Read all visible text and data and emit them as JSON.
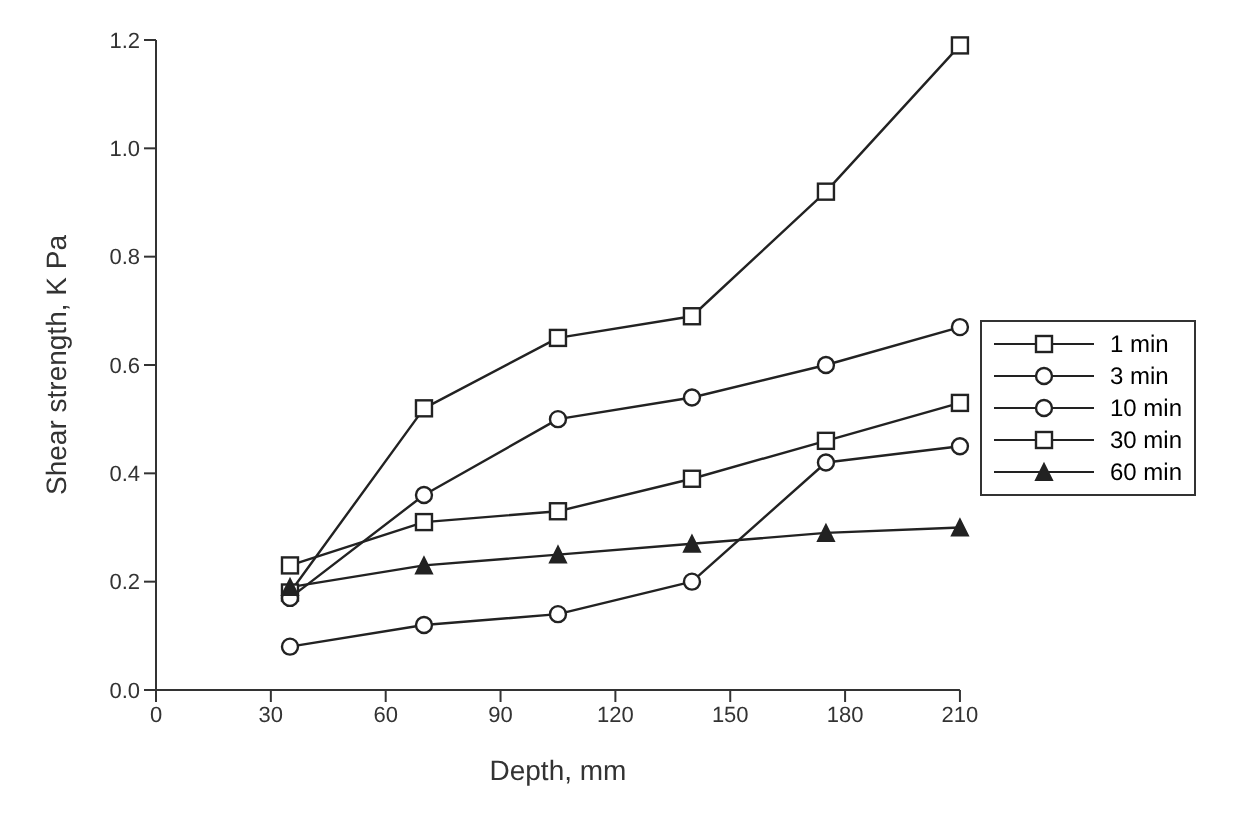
{
  "chart_data": {
    "type": "line",
    "xlabel": "Depth, mm",
    "ylabel": "Shear strength, K Pa",
    "x": [
      35,
      70,
      105,
      140,
      175,
      210
    ],
    "series": [
      {
        "name": "1 min",
        "color": "#222222",
        "marker": "square",
        "values": [
          0.18,
          0.52,
          0.65,
          0.69,
          0.92,
          1.19
        ]
      },
      {
        "name": "3 min",
        "color": "#222222",
        "marker": "circle",
        "values": [
          0.17,
          0.36,
          0.5,
          0.54,
          0.6,
          0.67
        ]
      },
      {
        "name": "10 min",
        "color": "#222222",
        "marker": "circle",
        "values": [
          0.08,
          0.12,
          0.14,
          0.2,
          0.42,
          0.45
        ]
      },
      {
        "name": "30 min",
        "color": "#222222",
        "marker": "square",
        "values": [
          0.23,
          0.31,
          0.33,
          0.39,
          0.46,
          0.53
        ]
      },
      {
        "name": "60 min",
        "color": "#222222",
        "marker": "triangle",
        "values": [
          0.19,
          0.23,
          0.25,
          0.27,
          0.29,
          0.3
        ]
      }
    ],
    "xlim": [
      0,
      210
    ],
    "xticks": [
      0,
      30,
      60,
      90,
      120,
      150,
      180,
      210
    ],
    "ylim": [
      0,
      1.2
    ],
    "yticks": [
      {
        "value": 0,
        "label": "0.0"
      },
      0.2,
      0.4,
      0.6,
      0.8,
      {
        "value": 1,
        "label": "1.0"
      },
      1.2
    ],
    "grid": false,
    "legend": "right",
    "line_style": "solid"
  }
}
